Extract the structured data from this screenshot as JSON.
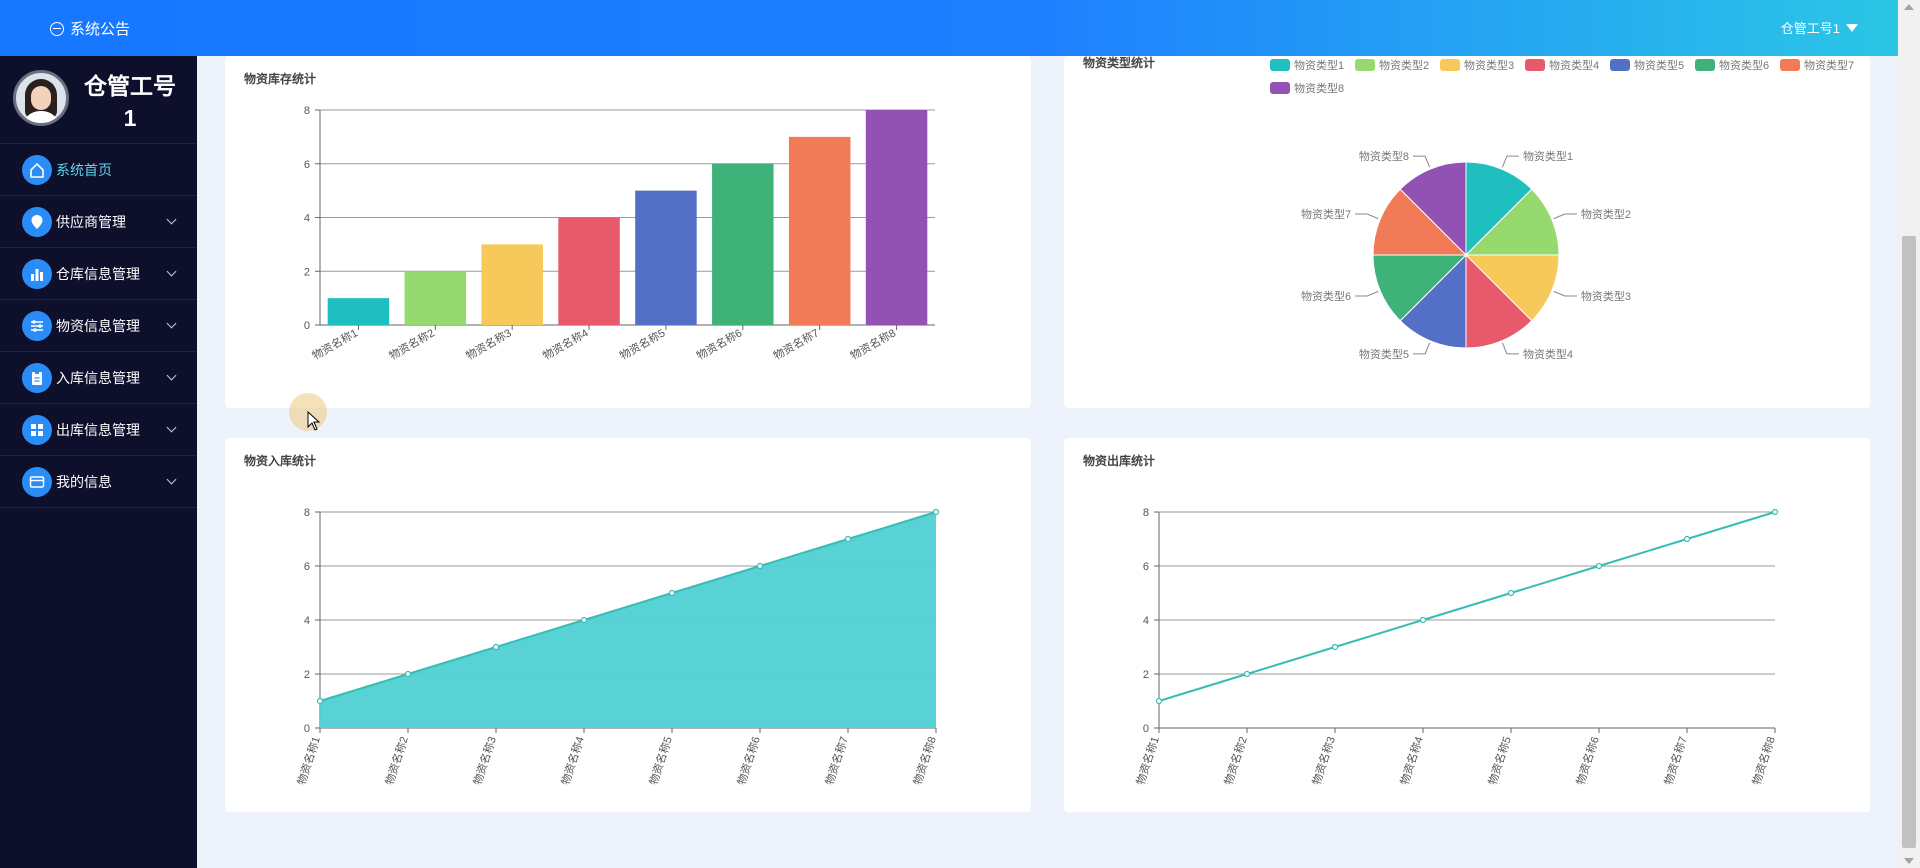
{
  "header": {
    "notice_label": "系统公告",
    "user_label": "仓管工号1"
  },
  "sidebar": {
    "profile_name": "仓管工号1",
    "items": [
      {
        "label": "系统首页",
        "icon": "home-icon",
        "active": true,
        "expandable": false
      },
      {
        "label": "供应商管理",
        "icon": "map-pin-icon",
        "active": false,
        "expandable": true
      },
      {
        "label": "仓库信息管理",
        "icon": "bar-chart-icon",
        "active": false,
        "expandable": true
      },
      {
        "label": "物资信息管理",
        "icon": "sliders-icon",
        "active": false,
        "expandable": true
      },
      {
        "label": "入库信息管理",
        "icon": "clipboard-icon",
        "active": false,
        "expandable": true
      },
      {
        "label": "出库信息管理",
        "icon": "grid-icon",
        "active": false,
        "expandable": true
      },
      {
        "label": "我的信息",
        "icon": "id-card-icon",
        "active": false,
        "expandable": true
      }
    ]
  },
  "cards": {
    "stock": {
      "title": "物资库存统计"
    },
    "types": {
      "title": "物资类型统计"
    },
    "inbound": {
      "title": "物资入库统计"
    },
    "outbound": {
      "title": "物资出库统计"
    }
  },
  "colors": {
    "palette": [
      "#1fbfbf",
      "#96d96e",
      "#f7c95a",
      "#e65a6b",
      "#5470c6",
      "#3fb27a",
      "#f07b56",
      "#9252b4"
    ],
    "line": "#36bdb6",
    "area": "#4fd0d3",
    "accent": "#1677ff",
    "sidebar_bg": "#0d0f2b"
  },
  "chart_data": [
    {
      "type": "bar",
      "title": "物资库存统计",
      "categories": [
        "物资名称1",
        "物资名称2",
        "物资名称3",
        "物资名称4",
        "物资名称5",
        "物资名称6",
        "物资名称7",
        "物资名称8"
      ],
      "values": [
        1,
        2,
        3,
        4,
        5,
        6,
        7,
        8
      ],
      "ylim": [
        0,
        8
      ],
      "yticks": [
        0,
        2,
        4,
        6,
        8
      ],
      "grid": true
    },
    {
      "type": "pie",
      "title": "物资类型统计",
      "labels": [
        "物资类型1",
        "物资类型2",
        "物资类型3",
        "物资类型4",
        "物资类型5",
        "物资类型6",
        "物资类型7",
        "物资类型8"
      ],
      "values": [
        1,
        1,
        1,
        1,
        1,
        1,
        1,
        1
      ],
      "legend": "top"
    },
    {
      "type": "area",
      "title": "物资入库统计",
      "categories": [
        "物资名称1",
        "物资名称2",
        "物资名称3",
        "物资名称4",
        "物资名称5",
        "物资名称6",
        "物资名称7",
        "物资名称8"
      ],
      "values": [
        1,
        2,
        3,
        4,
        5,
        6,
        7,
        8
      ],
      "ylim": [
        0,
        8
      ],
      "yticks": [
        0,
        2,
        4,
        6,
        8
      ],
      "grid": true
    },
    {
      "type": "line",
      "title": "物资出库统计",
      "categories": [
        "物资名称1",
        "物资名称2",
        "物资名称3",
        "物资名称4",
        "物资名称5",
        "物资名称6",
        "物资名称7",
        "物资名称8"
      ],
      "values": [
        1,
        2,
        3,
        4,
        5,
        6,
        7,
        8
      ],
      "ylim": [
        0,
        8
      ],
      "yticks": [
        0,
        2,
        4,
        6,
        8
      ],
      "grid": true
    }
  ]
}
